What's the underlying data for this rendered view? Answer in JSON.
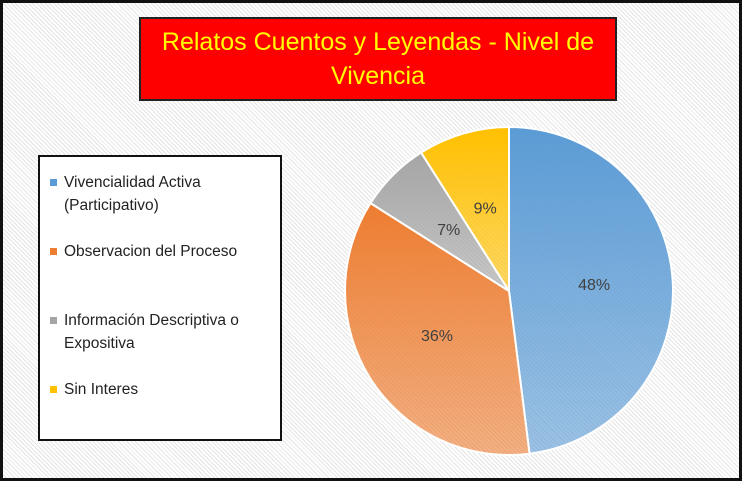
{
  "chart_data": {
    "type": "pie",
    "title": "Relatos Cuentos y Leyendas - Nivel de Vivencia",
    "categories": [
      "Vivencialidad Activa (Participativo)",
      "Observacion del Proceso",
      "Información Descriptiva o Expositiva",
      "Sin Interes"
    ],
    "values": [
      48,
      36,
      7,
      9
    ],
    "value_labels": [
      "48%",
      "36%",
      "7%",
      "9%"
    ],
    "colors": [
      "#5b9bd5",
      "#ed7d31",
      "#a5a5a5",
      "#ffc000"
    ],
    "legend": "left"
  }
}
